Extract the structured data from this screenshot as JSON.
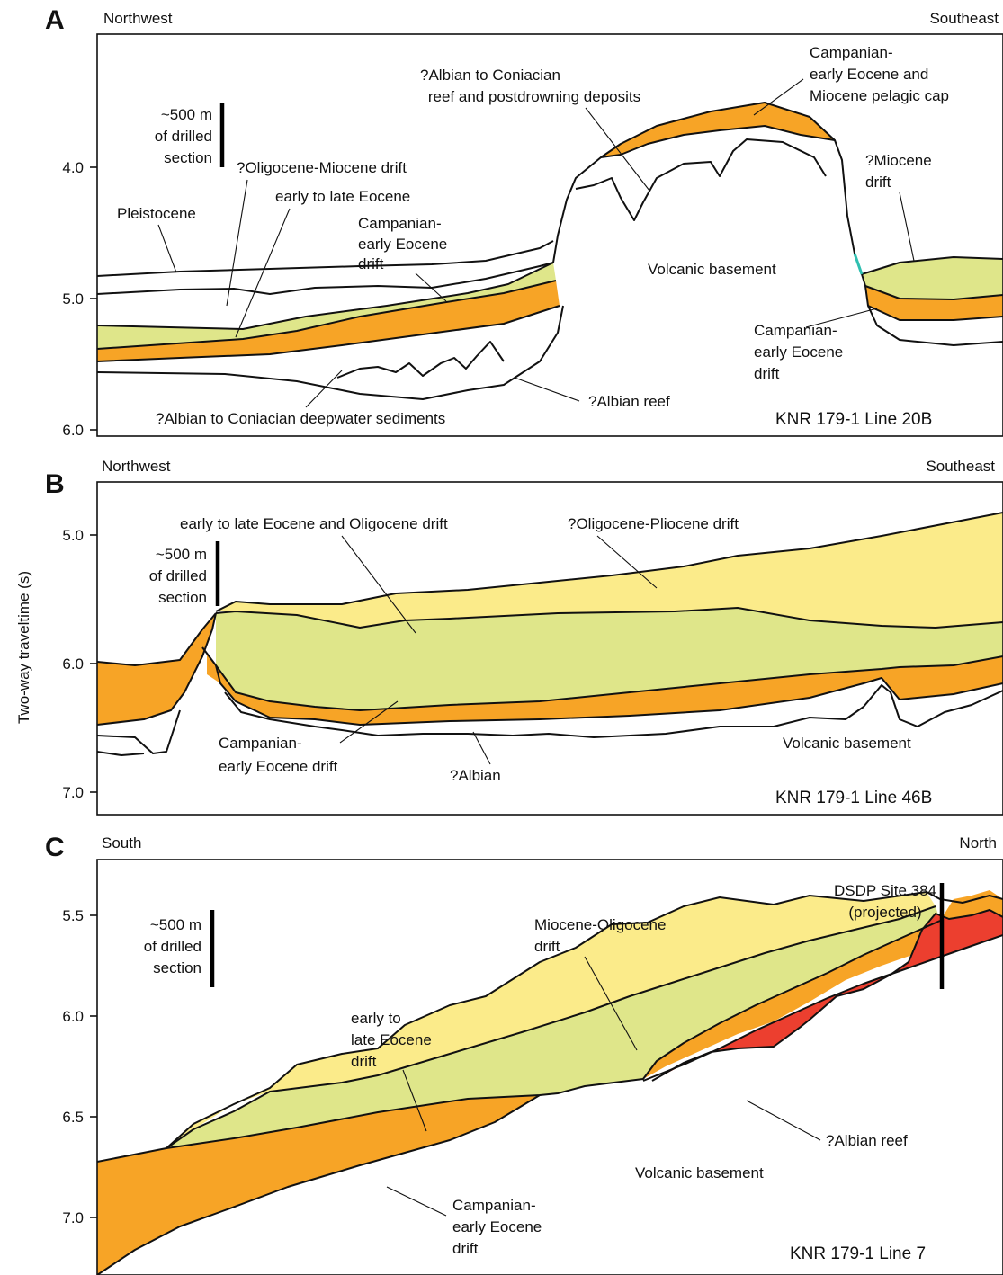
{
  "colors": {
    "orange": "#f7a426",
    "light_green": "#dfe68a",
    "light_yellow": "#fbeb8a",
    "red": "#ec3f2f",
    "cyan_accent": "#2fbfb0"
  },
  "y_axis_label": "Two-way traveltime (s)",
  "panels": [
    {
      "letter": "A",
      "left_direction": "Northwest",
      "right_direction": "Southeast",
      "line_name": "KNR 179-1 Line 20B",
      "ticks": [
        "4.0",
        "5.0",
        "6.0"
      ],
      "scale_bar": [
        "~500 m",
        "of drilled",
        "section"
      ],
      "labels": {
        "reef_top": [
          "?Albian to Coniacian",
          "reef and postdrowning deposits"
        ],
        "pelagic_cap": [
          "Campanian-",
          "early Eocene and",
          "Miocene pelagic cap"
        ],
        "oligo_miocene": "?Oligocene-Miocene drift",
        "early_late_eocene": "early to late Eocene",
        "pleistocene": "Pleistocene",
        "campanian_mid": [
          "Campanian-",
          "early Eocene",
          "drift"
        ],
        "volcanic": "Volcanic basement",
        "miocene_drift": [
          "?Miocene",
          "drift"
        ],
        "campanian_right": [
          "Campanian-",
          "early Eocene",
          "drift"
        ],
        "albian_reef": "?Albian reef",
        "deepwater": "?Albian to Coniacian deepwater sediments"
      }
    },
    {
      "letter": "B",
      "left_direction": "Northwest",
      "right_direction": "Southeast",
      "line_name": "KNR 179-1 Line 46B",
      "ticks": [
        "5.0",
        "6.0",
        "7.0"
      ],
      "scale_bar": [
        "~500 m",
        "of drilled",
        "section"
      ],
      "labels": {
        "eocene_oligo": "early to late Eocene and Oligocene drift",
        "oligo_pliocene": "?Oligocene-Pliocene drift",
        "campanian": [
          "Campanian-",
          "early Eocene drift"
        ],
        "albian": "?Albian",
        "volcanic": "Volcanic basement"
      }
    },
    {
      "letter": "C",
      "left_direction": "South",
      "right_direction": "North",
      "line_name": "KNR 179-1 Line 7",
      "ticks": [
        "5.5",
        "6.0",
        "6.5",
        "7.0"
      ],
      "scale_bar": [
        "~500 m",
        "of drilled",
        "section"
      ],
      "labels": {
        "dsdp": [
          "DSDP Site 384",
          "(projected)"
        ],
        "miocene_oligo": [
          "Miocene-Oligocene",
          "drift"
        ],
        "early_late_eocene": [
          "early to",
          "late Eocene",
          "drift"
        ],
        "albian_reef": "?Albian reef",
        "volcanic": "Volcanic basement",
        "campanian": [
          "Campanian-",
          "early Eocene",
          "drift"
        ]
      }
    }
  ]
}
